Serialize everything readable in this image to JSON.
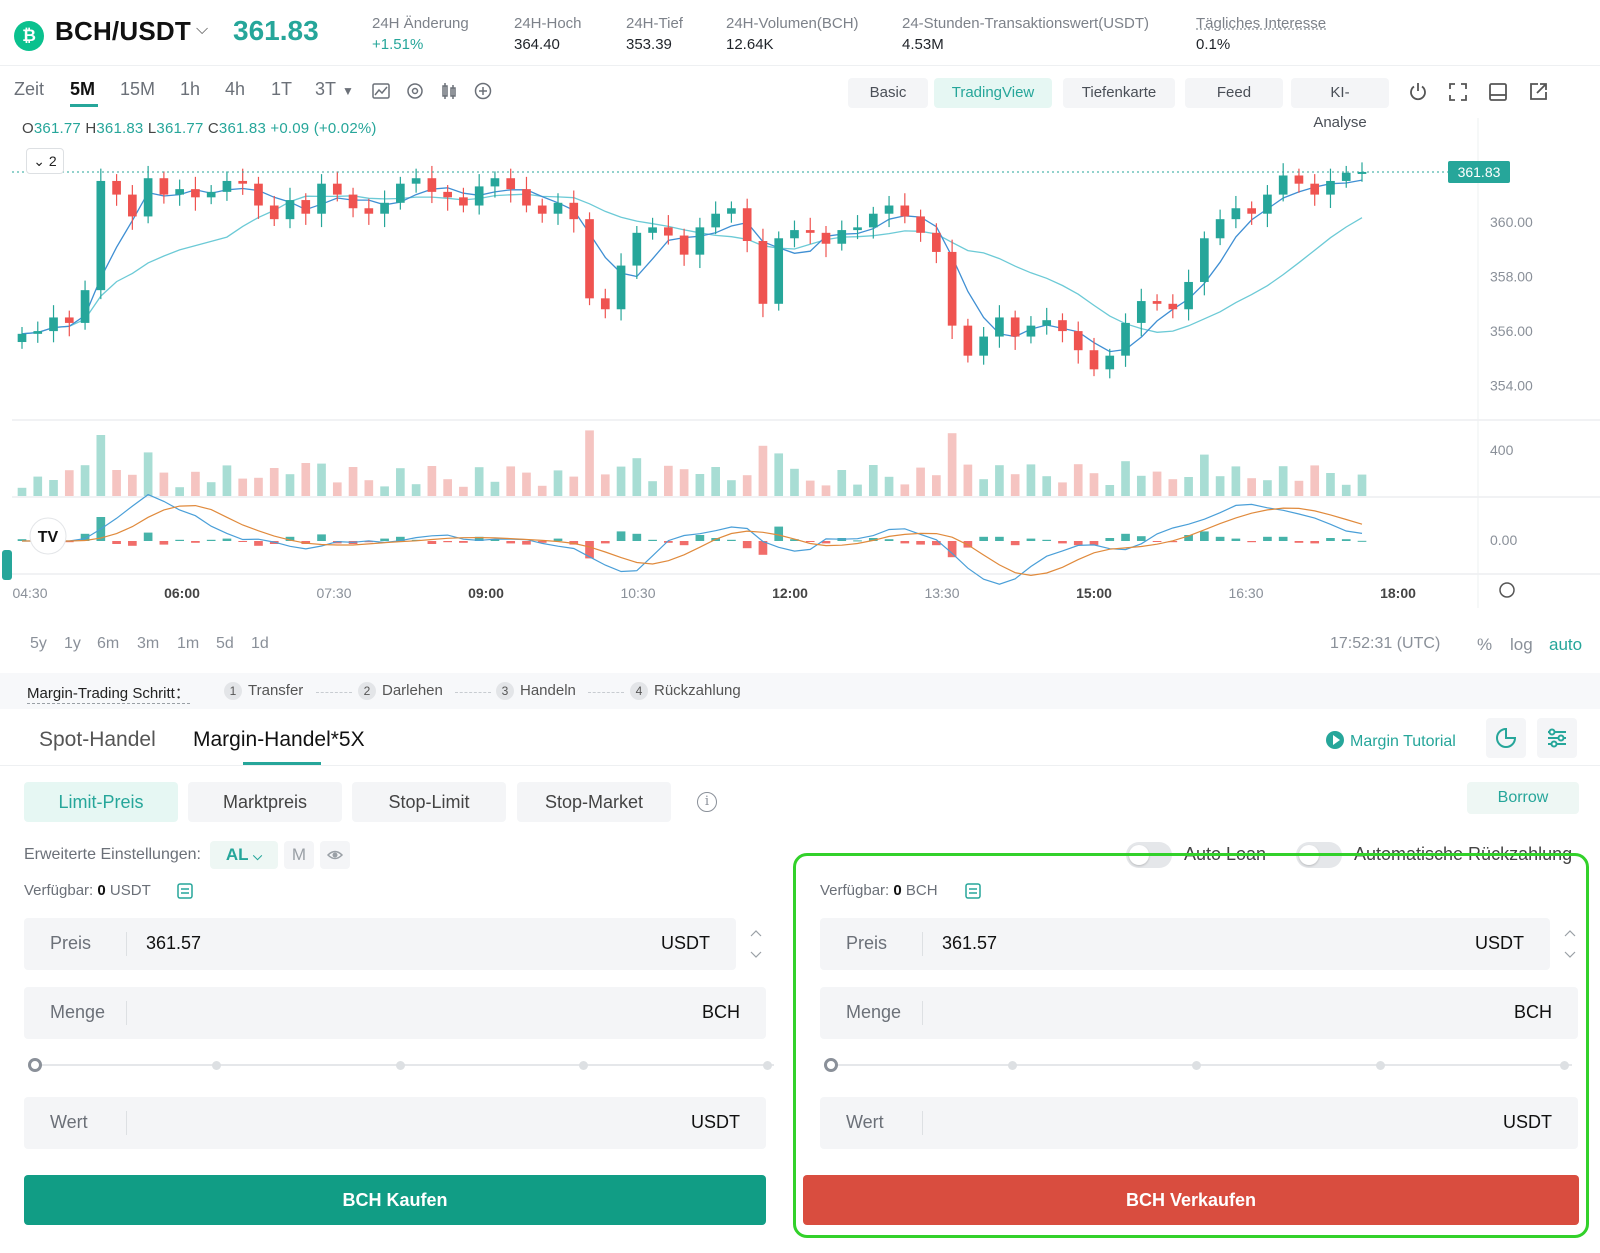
{
  "header": {
    "pair": "BCH/USDT",
    "last_price": "361.83",
    "stats": [
      {
        "label": "24H Änderung",
        "value": "+1.51%"
      },
      {
        "label": "24H-Hoch",
        "value": "364.40"
      },
      {
        "label": "24H-Tief",
        "value": "353.39"
      },
      {
        "label": "24H-Volumen(BCH)",
        "value": "12.64K"
      },
      {
        "label": "24-Stunden-Transaktionswert(USDT)",
        "value": "4.53M"
      },
      {
        "label": "Tägliches Interesse",
        "value": "0.1%"
      }
    ]
  },
  "toolbar": {
    "timeframes": [
      "Zeit",
      "5M",
      "15M",
      "1h",
      "4h",
      "1T",
      "3T"
    ],
    "active_timeframe": "5M",
    "views": [
      "Basic",
      "TradingView",
      "Tiefenkarte",
      "Feed",
      "KI-Analyse"
    ],
    "active_view": "TradingView"
  },
  "chart": {
    "ohlc": {
      "o_label": "O",
      "o": "361.77",
      "h_label": "H",
      "h": "361.83",
      "l_label": "L",
      "l": "361.77",
      "c_label": "C",
      "c": "361.83",
      "change": "+0.09 (+0.02%)"
    },
    "collapse_label": "2",
    "price_badge": "361.83",
    "price_ticks": [
      "360.00",
      "358.00",
      "356.00",
      "354.00"
    ],
    "volume_tick": "400",
    "macd_tick": "0.00",
    "time_ticks": [
      "04:30",
      "06:00",
      "07:30",
      "09:00",
      "10:30",
      "12:00",
      "13:30",
      "15:00",
      "16:30",
      "18:00"
    ],
    "ranges": [
      "5y",
      "1y",
      "6m",
      "3m",
      "1m",
      "5d",
      "1d"
    ],
    "clock": "17:52:31 (UTC)",
    "scale_options": [
      "%",
      "log",
      "auto"
    ],
    "active_scale": "auto",
    "colors": {
      "up": "#26a69a",
      "down": "#ef5350",
      "ma_fast": "#3f8fd3",
      "ma_slow": "#6ccad6"
    }
  },
  "chart_data": {
    "type": "candlestick",
    "ylim": [
      353,
      363
    ],
    "candles_approx_close": [
      355.9,
      356.0,
      356.5,
      356.3,
      357.5,
      361.5,
      361.0,
      360.2,
      361.6,
      361.0,
      361.2,
      360.9,
      361.1,
      361.5,
      361.4,
      360.6,
      360.1,
      360.8,
      360.3,
      361.4,
      361.0,
      360.5,
      360.3,
      360.7,
      361.4,
      361.6,
      361.1,
      360.9,
      360.6,
      361.3,
      361.6,
      361.2,
      360.6,
      360.3,
      360.7,
      360.1,
      357.2,
      356.8,
      358.4,
      359.6,
      359.8,
      359.5,
      358.8,
      359.8,
      360.3,
      360.5,
      359.3,
      357.0,
      359.4,
      359.7,
      359.6,
      359.2,
      359.7,
      359.8,
      360.3,
      360.6,
      360.2,
      359.6,
      358.9,
      356.2,
      355.1,
      355.8,
      356.5,
      355.8,
      356.2,
      356.4,
      356.0,
      355.3,
      354.6,
      355.1,
      356.3,
      357.1,
      357.0,
      356.8,
      357.8,
      359.4,
      360.1,
      360.5,
      360.3,
      361.0,
      361.7,
      361.4,
      361.0,
      361.5,
      361.8,
      361.83
    ],
    "volume_tick": 400,
    "macd_zero": 0.0
  },
  "margin_steps": {
    "title": "Margin-Trading Schritt：",
    "steps": [
      {
        "num": "1",
        "label": "Transfer"
      },
      {
        "num": "2",
        "label": "Darlehen"
      },
      {
        "num": "3",
        "label": "Handeln"
      },
      {
        "num": "4",
        "label": "Rückzahlung"
      }
    ]
  },
  "trade_tabs": {
    "spot": "Spot-Handel",
    "margin": "Margin-Handel*5X",
    "tutorial": "Margin Tutorial"
  },
  "order_types": [
    "Limit-Preis",
    "Marktpreis",
    "Stop-Limit",
    "Stop-Market"
  ],
  "active_order_type": "Limit-Preis",
  "borrow_label": "Borrow",
  "advanced": {
    "label": "Erweiterte Einstellungen:",
    "al": "AL",
    "m": "M",
    "auto_loan": "Auto Loan",
    "auto_repay": "Automatische Rückzahlung"
  },
  "buy_form": {
    "available_label": "Verfügbar:",
    "available_amount": "0",
    "available_unit": "USDT",
    "price_label": "Preis",
    "price_value": "361.57",
    "price_unit": "USDT",
    "qty_label": "Menge",
    "qty_unit": "BCH",
    "value_label": "Wert",
    "value_unit": "USDT",
    "slider_percent": 0,
    "button": "BCH Kaufen"
  },
  "sell_form": {
    "available_label": "Verfügbar:",
    "available_amount": "0",
    "available_unit": "BCH",
    "price_label": "Preis",
    "price_value": "361.57",
    "price_unit": "USDT",
    "qty_label": "Menge",
    "qty_unit": "BCH",
    "value_label": "Wert",
    "value_unit": "USDT",
    "slider_percent": 0,
    "button": "BCH Verkaufen"
  }
}
